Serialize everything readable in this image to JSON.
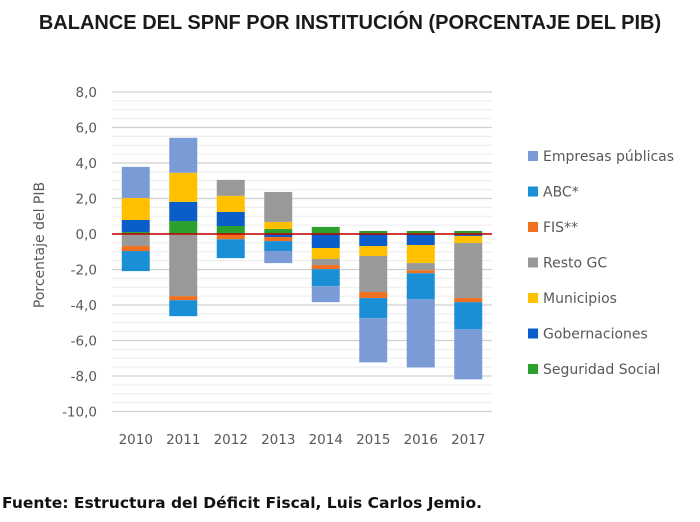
{
  "chart_data": {
    "type": "bar",
    "stacked": true,
    "title": "BALANCE DEL SPNF POR INSTITUCIÓN (PORCENTAJE DEL PIB)",
    "xlabel": "",
    "ylabel": "Porcentaje del PIB",
    "ylim": [
      -10,
      8
    ],
    "yticks": [
      8,
      6,
      4,
      2,
      0,
      -2,
      -4,
      -6,
      -8,
      -10
    ],
    "ytick_labels": [
      "8,0",
      "6,0",
      "4,0",
      "2,0",
      "0,0",
      "-2,0",
      "-4,0",
      "-6,0",
      "-8,0",
      "-10,0"
    ],
    "grid": true,
    "zero_line_color": "#c00000",
    "legend_position": "right",
    "categories": [
      "2010",
      "2011",
      "2012",
      "2013",
      "2014",
      "2015",
      "2016",
      "2017"
    ],
    "series": [
      {
        "name": "Seguridad Social",
        "color": "#2ca02c",
        "values": [
          0.11,
          0.73,
          0.45,
          0.28,
          0.4,
          0.17,
          0.17,
          0.17
        ]
      },
      {
        "name": "Gobernaciones",
        "color": "#0b5ec9",
        "values": [
          0.68,
          1.08,
          0.79,
          -0.17,
          -0.79,
          -0.68,
          -0.62,
          -0.11
        ]
      },
      {
        "name": "Municipios",
        "color": "#ffc000",
        "values": [
          1.24,
          1.64,
          0.91,
          0.4,
          -0.62,
          -0.56,
          -1.02,
          -0.4
        ]
      },
      {
        "name": "Resto GC",
        "color": "#999999",
        "values": [
          -0.68,
          -3.5,
          0.9,
          1.69,
          -0.34,
          -2.03,
          -0.4,
          -3.1
        ]
      },
      {
        "name": "FIS**",
        "color": "#f07020",
        "values": [
          -0.28,
          -0.23,
          -0.3,
          -0.23,
          -0.23,
          -0.34,
          -0.17,
          -0.23
        ]
      },
      {
        "name": "ABC*",
        "color": "#1a8fd6",
        "values": [
          -1.13,
          -0.9,
          -1.06,
          -0.56,
          -0.96,
          -1.13,
          -1.47,
          -1.53
        ]
      },
      {
        "name": "Empresas públicas",
        "color": "#7b9bd6",
        "values": [
          1.75,
          1.97,
          0.0,
          -0.68,
          -0.9,
          -2.49,
          -3.84,
          -2.82
        ]
      }
    ],
    "legend_order": [
      "Empresas públicas",
      "ABC*",
      "FIS**",
      "Resto GC",
      "Municipios",
      "Gobernaciones",
      "Seguridad Social"
    ]
  },
  "source": "Fuente: Estructura del Déficit Fiscal, Luis Carlos Jemio."
}
